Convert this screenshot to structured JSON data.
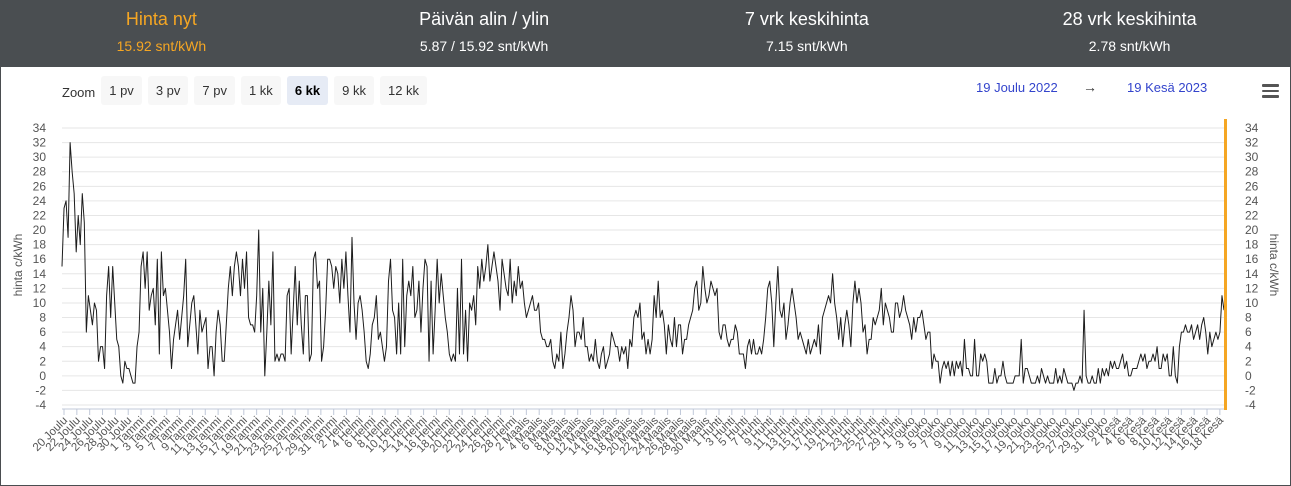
{
  "stats": [
    {
      "title": "Hinta nyt",
      "value": "15.92 snt/kWh",
      "highlight": true
    },
    {
      "title": "Päivän alin / ylin",
      "value": "5.87 / 15.92 snt/kWh",
      "highlight": false
    },
    {
      "title": "7 vrk keskihinta",
      "value": "7.15 snt/kWh",
      "highlight": false
    },
    {
      "title": "28 vrk keskihinta",
      "value": "2.78 snt/kWh",
      "highlight": false
    }
  ],
  "zoom": {
    "label": "Zoom",
    "buttons": [
      "1 pv",
      "3 pv",
      "7 pv",
      "1 kk",
      "6 kk",
      "9 kk",
      "12 kk"
    ],
    "active": "6 kk"
  },
  "range": {
    "from": "19 Joulu 2022",
    "arrow": "→",
    "to": "19 Kesä 2023"
  },
  "colors": {
    "line": "#1c1c1c",
    "current_marker": "#f5a623",
    "range_text": "#3344cc",
    "header_bg": "#4a4e51"
  },
  "chart_data": {
    "type": "line",
    "ylabel": "hinta c/kWh",
    "ylabel_right": "hinta c/kWh",
    "ylim": [
      -4,
      34
    ],
    "yticks": [
      -4,
      -2,
      0,
      2,
      4,
      6,
      8,
      10,
      12,
      14,
      16,
      18,
      20,
      22,
      24,
      26,
      28,
      30,
      32,
      34
    ],
    "grid": true,
    "x_tick_labels": [
      "20 Joulu",
      "22 Joulu",
      "24 Joulu",
      "26 Joulu",
      "28 Joulu",
      "30 Joulu",
      "1 Tammi",
      "3 Tammi",
      "5 Tammi",
      "7 Tammi",
      "9 Tammi",
      "11 Tammi",
      "13 Tammi",
      "15 Tammi",
      "17 Tammi",
      "19 Tammi",
      "21 Tammi",
      "23 Tammi",
      "25 Tammi",
      "27 Tammi",
      "29 Tammi",
      "31 Tammi",
      "2 Helmi",
      "4 Helmi",
      "6 Helmi",
      "8 Helmi",
      "10 Helmi",
      "12 Helmi",
      "14 Helmi",
      "16 Helmi",
      "18 Helmi",
      "20 Helmi",
      "22 Helmi",
      "24 Helmi",
      "26 Helmi",
      "28 Helmi",
      "2 Maalis",
      "4 Maalis",
      "6 Maalis",
      "8 Maalis",
      "10 Maalis",
      "12 Maalis",
      "14 Maalis",
      "16 Maalis",
      "18 Maalis",
      "20 Maalis",
      "22 Maalis",
      "24 Maalis",
      "26 Maalis",
      "28 Maalis",
      "30 Maalis",
      "1 Huhti",
      "3 Huhti",
      "5 Huhti",
      "7 Huhti",
      "9 Huhti",
      "11 Huhti",
      "13 Huhti",
      "15 Huhti",
      "17 Huhti",
      "19 Huhti",
      "21 Huhti",
      "23 Huhti",
      "25 Huhti",
      "27 Huhti",
      "29 Huhti",
      "1 Touko",
      "3 Touko",
      "5 Touko",
      "7 Touko",
      "9 Touko",
      "11 Touko",
      "13 Touko",
      "15 Touko",
      "17 Touko",
      "19 Touko",
      "21 Touko",
      "23 Touko",
      "25 Touko",
      "27 Touko",
      "29 Touko",
      "31 Touko",
      "2 Kesä",
      "4 Kesä",
      "6 Kesä",
      "8 Kesä",
      "10 Kesä",
      "12 Kesä",
      "14 Kesä",
      "16 Kesä",
      "18 Kesä"
    ],
    "series": [
      {
        "values": [
          15,
          23,
          24,
          19,
          32,
          28,
          25,
          17,
          22,
          18,
          25,
          21,
          6,
          11,
          9,
          7,
          10,
          9,
          2,
          4,
          4,
          1,
          11,
          15,
          8,
          15,
          10,
          5,
          4,
          0,
          -1,
          2,
          1,
          1,
          0,
          -1,
          -1,
          4,
          6,
          15,
          17,
          12,
          17,
          9,
          11,
          12,
          7,
          16,
          3,
          17,
          11,
          12,
          9,
          6,
          1,
          5,
          7,
          9,
          5,
          8,
          11,
          16,
          4,
          7,
          10,
          11,
          7,
          3,
          9,
          6,
          7,
          8,
          1,
          4,
          4,
          0,
          6,
          9,
          7,
          2,
          2,
          7,
          12,
          15,
          11,
          15,
          17,
          15,
          11,
          16,
          12,
          17,
          8,
          7,
          7,
          6,
          11,
          20,
          6,
          12,
          0,
          6,
          13,
          7,
          17,
          2,
          3,
          2,
          3,
          3,
          2,
          11,
          12,
          3,
          9,
          15,
          7,
          13,
          7,
          3,
          11,
          11,
          2,
          3,
          16,
          17,
          12,
          13,
          2,
          4,
          9,
          16,
          16,
          15,
          12,
          15,
          14,
          10,
          16,
          12,
          17,
          11,
          6,
          19,
          10,
          5,
          10,
          11,
          9,
          6,
          2,
          1,
          3,
          7,
          8,
          11,
          5,
          6,
          4,
          2,
          4,
          13,
          16,
          9,
          8,
          3,
          10,
          3,
          16,
          4,
          11,
          13,
          11,
          15,
          8,
          9,
          13,
          6,
          12,
          16,
          15,
          2,
          13,
          3,
          9,
          16,
          10,
          14,
          11,
          8,
          6,
          3,
          2,
          3,
          2,
          12,
          3,
          16,
          3,
          9,
          2,
          10,
          9,
          11,
          7,
          15,
          12,
          16,
          13,
          15,
          18,
          13,
          15,
          17,
          15,
          13,
          9,
          16,
          14,
          12,
          11,
          16,
          10,
          13,
          11,
          15,
          12,
          13,
          10,
          8,
          9,
          10,
          11,
          9,
          9,
          10,
          6,
          5,
          5,
          4,
          4,
          5,
          2,
          1,
          3,
          2,
          6,
          1,
          3,
          6,
          8,
          11,
          9,
          4,
          6,
          6,
          5,
          8,
          4,
          4,
          2,
          3,
          2,
          5,
          2,
          1,
          3,
          4,
          1,
          2,
          3,
          6,
          5,
          4,
          4,
          2,
          4,
          3,
          4,
          1,
          5,
          4,
          8,
          9,
          8,
          10,
          5,
          6,
          3,
          5,
          3,
          5,
          11,
          8,
          13,
          8,
          9,
          7,
          3,
          7,
          5,
          4,
          8,
          4,
          7,
          7,
          3,
          5,
          5,
          7,
          8,
          9,
          12,
          13,
          9,
          10,
          15,
          12,
          10,
          11,
          13,
          12,
          11,
          12,
          6,
          5,
          7,
          7,
          5,
          4,
          5,
          5,
          7,
          6,
          3,
          3,
          3,
          1,
          4,
          5,
          3,
          5,
          3,
          3,
          4,
          3,
          5,
          8,
          12,
          13,
          10,
          4,
          10,
          15,
          9,
          8,
          10,
          5,
          7,
          10,
          12,
          10,
          8,
          5,
          6,
          5,
          4,
          3,
          5,
          3,
          4,
          5,
          4,
          7,
          3,
          8,
          9,
          10,
          11,
          10,
          14,
          10,
          8,
          5,
          8,
          4,
          7,
          9,
          7,
          4,
          10,
          13,
          10,
          12,
          10,
          6,
          7,
          3,
          5,
          5,
          8,
          7,
          8,
          9,
          12,
          7,
          10,
          9,
          8,
          6,
          6,
          10,
          10,
          8,
          9,
          11,
          9,
          8,
          7,
          5,
          8,
          6,
          8,
          8,
          9,
          7,
          5,
          6,
          6,
          1,
          3,
          2,
          2,
          -1,
          1,
          2,
          1,
          2,
          0,
          2,
          0,
          2,
          1,
          2,
          0,
          5,
          1,
          1,
          0,
          0,
          5,
          0,
          0,
          3,
          2,
          3,
          2,
          -1,
          -1,
          -1,
          1,
          -1,
          0,
          0,
          2,
          0,
          -1,
          -1,
          -1,
          -1,
          0,
          0,
          0,
          5,
          -1,
          1,
          1,
          0,
          -1,
          -1,
          -1,
          0,
          -1,
          1,
          0,
          -1,
          0,
          -1,
          -1,
          -1,
          1,
          -1,
          0,
          -1,
          1,
          0,
          -1,
          -1,
          -1,
          -2,
          -1,
          -1,
          0,
          -1,
          9,
          0,
          -1,
          -1,
          0,
          -1,
          -1,
          1,
          -1,
          1,
          0,
          1,
          0,
          2,
          1,
          2,
          1,
          1,
          2,
          3,
          1,
          2,
          0,
          0,
          1,
          1,
          1,
          2,
          3,
          2,
          3,
          1,
          2,
          2,
          3,
          2,
          4,
          1,
          1,
          3,
          2,
          3,
          0,
          0,
          4,
          0,
          -1,
          4,
          6,
          6,
          7,
          6,
          6,
          7,
          5,
          6,
          7,
          5,
          7,
          8,
          6,
          3,
          6,
          4,
          5,
          6,
          5,
          6,
          11,
          9
        ]
      }
    ]
  }
}
